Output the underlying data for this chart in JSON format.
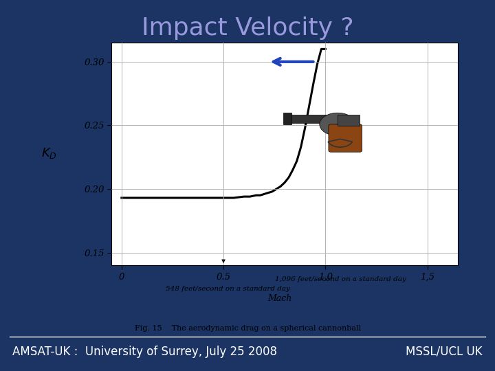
{
  "title": "Impact Velocity ?",
  "title_color": "#9999dd",
  "bg_color": "#1b3464",
  "footer_left": "AMSAT-UK :  University of Surrey, July 25 2008",
  "footer_right": "MSSL/UCL UK",
  "footer_color": "white",
  "chart_bg": "#f8f8f2",
  "curve_color": "black",
  "arrow_color": "#2244bb",
  "title_fontsize": 26,
  "footer_fontsize": 12,
  "x_curve": [
    0.0,
    0.05,
    0.1,
    0.15,
    0.2,
    0.3,
    0.4,
    0.5,
    0.55,
    0.6,
    0.63,
    0.66,
    0.68,
    0.7,
    0.72,
    0.74,
    0.76,
    0.78,
    0.8,
    0.82,
    0.84,
    0.86,
    0.88,
    0.9,
    0.92,
    0.94,
    0.96,
    0.98,
    1.0
  ],
  "y_curve": [
    0.193,
    0.193,
    0.193,
    0.193,
    0.193,
    0.193,
    0.193,
    0.193,
    0.193,
    0.194,
    0.194,
    0.195,
    0.195,
    0.196,
    0.197,
    0.198,
    0.2,
    0.202,
    0.205,
    0.209,
    0.215,
    0.222,
    0.233,
    0.248,
    0.265,
    0.282,
    0.298,
    0.31,
    0.31
  ],
  "xlim": [
    -0.05,
    1.65
  ],
  "ylim": [
    0.14,
    0.315
  ],
  "yticks": [
    0.15,
    0.2,
    0.25,
    0.3
  ],
  "xticks": [
    0,
    0.5,
    1.0,
    1.5
  ],
  "ytick_labels": [
    "0.15",
    "0.20",
    "0.25",
    "0.30"
  ],
  "xtick_labels": [
    "0",
    "0.5",
    "1,0",
    "1,5"
  ],
  "annotation_line1": "1,096 feet/second on a standard day",
  "annotation_line2": "548 feet/second on a standard day",
  "annotation_mach": "Mach",
  "fig_caption": "Fig. 15    The aerodynamic drag on a spherical cannonball",
  "ylabel": "$K_D$"
}
